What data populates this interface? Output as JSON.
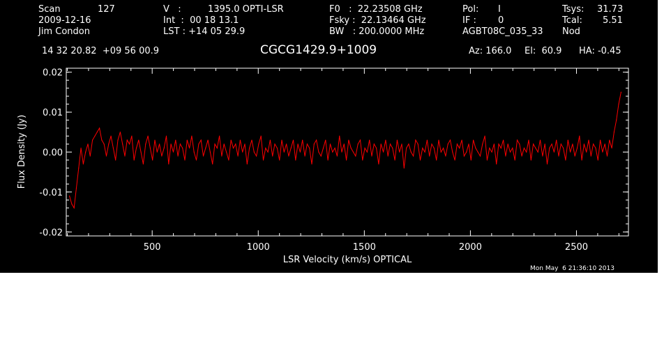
{
  "header": {
    "scan_label": "Scan",
    "scan_value": "127",
    "date": "2009-12-16",
    "observer": "Jim Condon",
    "v_label": "V   :",
    "v_value": "1395.0 OPTI-LSR",
    "int_text": "Int  :  00 18 13.1",
    "lst_text": "LST : +14 05 29.9",
    "f0_text": "F0   :  22.23508 GHz",
    "fsky_text": "Fsky :  22.13464 GHz",
    "bw_text": "BW   : 200.0000 MHz",
    "pol_label": "Pol:",
    "pol_value": "I",
    "if_label": "IF :",
    "if_value": "0",
    "project": "AGBT08C_035_33",
    "tsys_label": "Tsys:",
    "tsys_value": "31.73",
    "tcal_label": "Tcal:",
    "tcal_value": "5.51",
    "mode": "Nod",
    "coords": "14 32 20.82  +09 56 00.9",
    "source": "CGCG1429.9+1009",
    "az": "Az: 166.0",
    "el": "El:  60.9",
    "ha": "HA: -0.45"
  },
  "timestamp": "Mon May  6 21:36:10 2013",
  "chart_data": {
    "type": "line",
    "title": "CGCG1429.9+1009",
    "xlabel": "LSR Velocity (km/s) OPTICAL",
    "ylabel": "Flux Density (Jy)",
    "xlim": [
      95,
      2745
    ],
    "ylim": [
      -0.021,
      0.021
    ],
    "x_ticks": [
      500,
      1000,
      1500,
      2000,
      2500
    ],
    "y_ticks": [
      -0.02,
      -0.01,
      0.0,
      0.01,
      0.02
    ],
    "y_tick_labels": [
      "-0.02",
      "-0.01",
      "0.00",
      "0.01",
      "0.02"
    ],
    "grid": false,
    "series": [
      {
        "color": "#ff0000",
        "x_start": 110,
        "x_end": 2710,
        "values": [
          -0.011,
          -0.013,
          -0.014,
          -0.009,
          -0.004,
          0.001,
          -0.003,
          0.0,
          0.002,
          -0.001,
          0.003,
          0.004,
          0.005,
          0.006,
          0.003,
          0.002,
          -0.001,
          0.002,
          0.004,
          0.001,
          -0.002,
          0.003,
          0.005,
          0.002,
          -0.001,
          0.003,
          0.002,
          0.004,
          -0.002,
          0.001,
          0.003,
          0.0,
          -0.003,
          0.002,
          0.004,
          0.001,
          -0.002,
          0.003,
          0.0,
          0.002,
          -0.001,
          0.001,
          0.004,
          -0.003,
          0.002,
          0.0,
          0.003,
          -0.001,
          0.002,
          0.001,
          -0.002,
          0.003,
          0.001,
          0.004,
          0.0,
          -0.002,
          0.002,
          0.003,
          -0.001,
          0.001,
          0.003,
          0.0,
          -0.003,
          0.002,
          0.001,
          0.004,
          -0.001,
          0.002,
          0.0,
          -0.002,
          0.003,
          0.001,
          0.002,
          -0.001,
          0.003,
          0.0,
          0.002,
          -0.003,
          0.001,
          0.003,
          0.0,
          -0.001,
          0.002,
          0.004,
          -0.002,
          0.001,
          0.0,
          0.003,
          -0.001,
          0.002,
          0.001,
          -0.002,
          0.003,
          0.0,
          0.002,
          -0.001,
          0.001,
          0.003,
          -0.002,
          0.002,
          0.0,
          0.003,
          -0.001,
          0.002,
          0.001,
          -0.003,
          0.002,
          0.003,
          0.0,
          -0.001,
          0.001,
          0.003,
          -0.002,
          0.002,
          0.0,
          0.001,
          -0.001,
          0.004,
          0.0,
          0.002,
          -0.002,
          0.003,
          0.001,
          0.0,
          -0.001,
          0.002,
          0.003,
          -0.002,
          0.001,
          0.0,
          0.003,
          -0.001,
          0.002,
          0.001,
          -0.003,
          0.002,
          0.0,
          0.003,
          -0.001,
          0.002,
          0.001,
          -0.002,
          0.003,
          0.0,
          0.002,
          -0.004,
          0.001,
          0.002,
          0.0,
          -0.001,
          0.003,
          0.002,
          -0.002,
          0.001,
          0.0,
          0.003,
          -0.001,
          0.002,
          0.001,
          -0.002,
          0.003,
          0.0,
          0.001,
          -0.001,
          0.002,
          0.003,
          0.0,
          -0.002,
          0.002,
          0.001,
          0.003,
          -0.001,
          0.0,
          0.002,
          -0.002,
          0.003,
          0.001,
          0.0,
          -0.001,
          0.002,
          0.004,
          -0.002,
          0.001,
          0.0,
          0.002,
          -0.003,
          0.002,
          0.001,
          0.003,
          -0.001,
          0.002,
          0.0,
          0.001,
          -0.002,
          0.003,
          0.002,
          -0.001,
          0.001,
          0.0,
          0.003,
          -0.002,
          0.002,
          0.001,
          0.0,
          0.003,
          -0.001,
          0.002,
          -0.003,
          0.001,
          0.002,
          0.0,
          0.003,
          -0.001,
          0.002,
          0.001,
          -0.002,
          0.003,
          0.0,
          0.002,
          -0.001,
          0.001,
          0.004,
          -0.002,
          0.002,
          0.0,
          0.003,
          -0.001,
          0.002,
          0.001,
          -0.002,
          0.003,
          0.0,
          0.002,
          -0.001,
          0.003,
          0.001,
          0.005,
          0.008,
          0.012,
          0.015
        ]
      }
    ]
  }
}
